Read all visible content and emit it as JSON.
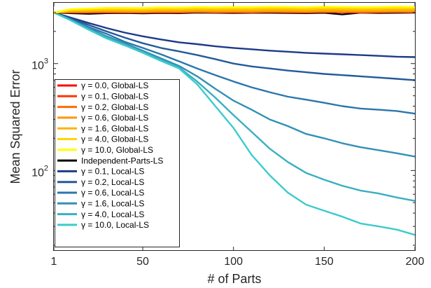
{
  "chart_data": {
    "type": "line",
    "xlabel": "# of Parts",
    "ylabel": "Mean Squared Error",
    "xlim": [
      1,
      200
    ],
    "ylim": [
      18,
      3700
    ],
    "yscale": "log",
    "grid": false,
    "legend_location": "left (middle-lower)",
    "x_ticks": [
      {
        "value": 1,
        "label": "1"
      },
      {
        "value": 50,
        "label": "50"
      },
      {
        "value": 100,
        "label": "100"
      },
      {
        "value": 150,
        "label": "150"
      },
      {
        "value": 200,
        "label": "200"
      }
    ],
    "y_ticks": [
      {
        "value": 100,
        "label": "10",
        "exp": "2"
      },
      {
        "value": 1000,
        "label": "10",
        "exp": "3"
      }
    ],
    "x": [
      1,
      10,
      20,
      30,
      40,
      50,
      60,
      70,
      80,
      90,
      100,
      110,
      120,
      130,
      140,
      150,
      160,
      170,
      180,
      190,
      200
    ],
    "series": [
      {
        "name": "γ = 0.0, Global-LS",
        "color": "#ff0000",
        "values": [
          3000,
          3010,
          3000,
          3020,
          3010,
          3000,
          3020,
          3010,
          3030,
          3010,
          3020,
          3010,
          3030,
          3020,
          3010,
          3030,
          3020,
          3010,
          3020,
          3030,
          3020
        ]
      },
      {
        "name": "γ = 0.1, Global-LS",
        "color": "#ff3500",
        "values": [
          3000,
          3020,
          3010,
          3030,
          3020,
          3010,
          3030,
          3020,
          3040,
          3020,
          3030,
          3020,
          3040,
          3030,
          3020,
          3040,
          3030,
          3020,
          3030,
          3040,
          3030
        ]
      },
      {
        "name": "γ = 0.2, Global-LS",
        "color": "#ff6a00",
        "values": [
          3000,
          3030,
          3020,
          3040,
          3030,
          3020,
          3040,
          3030,
          3050,
          3030,
          3040,
          3030,
          3050,
          3040,
          3030,
          3050,
          3040,
          3030,
          3040,
          3050,
          3040
        ]
      },
      {
        "name": "γ = 0.6, Global-LS",
        "color": "#ff9500",
        "values": [
          3000,
          3050,
          3060,
          3080,
          3070,
          3060,
          3090,
          3080,
          3100,
          3080,
          3090,
          3080,
          3100,
          3090,
          3080,
          3100,
          3090,
          3080,
          3090,
          3100,
          3090
        ]
      },
      {
        "name": "γ = 1.6, Global-LS",
        "color": "#ffb300",
        "values": [
          3000,
          3100,
          3110,
          3140,
          3130,
          3120,
          3160,
          3140,
          3170,
          3150,
          3160,
          3150,
          3180,
          3170,
          3150,
          3180,
          3170,
          3150,
          3160,
          3180,
          3170
        ]
      },
      {
        "name": "γ = 4.0, Global-LS",
        "color": "#ffd400",
        "values": [
          3000,
          3160,
          3190,
          3230,
          3220,
          3210,
          3260,
          3240,
          3280,
          3250,
          3270,
          3260,
          3290,
          3280,
          3260,
          3300,
          3280,
          3260,
          3270,
          3300,
          3280
        ]
      },
      {
        "name": "γ = 10.0, Global-LS",
        "color": "#ffff00",
        "values": [
          3000,
          3220,
          3270,
          3320,
          3320,
          3310,
          3360,
          3340,
          3380,
          3360,
          3380,
          3370,
          3400,
          3390,
          3370,
          3410,
          3390,
          3370,
          3380,
          3410,
          3390
        ]
      },
      {
        "name": "Independent-Parts-LS",
        "color": "#000000",
        "values": [
          3000,
          2960,
          2920,
          2960,
          2970,
          2950,
          2970,
          2960,
          2990,
          2980,
          2970,
          2980,
          2980,
          2970,
          2960,
          2980,
          2880,
          2990,
          2970,
          2980,
          2990
        ]
      },
      {
        "name": "γ = 0.1, Local-LS",
        "color": "#1e3a8a",
        "values": [
          3000,
          2700,
          2400,
          2150,
          1950,
          1800,
          1680,
          1580,
          1520,
          1450,
          1400,
          1360,
          1320,
          1290,
          1260,
          1240,
          1220,
          1200,
          1180,
          1160,
          1150
        ]
      },
      {
        "name": "γ = 0.2, Local-LS",
        "color": "#24599a",
        "values": [
          3000,
          2650,
          2300,
          2000,
          1750,
          1550,
          1400,
          1300,
          1200,
          1100,
          1000,
          940,
          900,
          860,
          830,
          800,
          780,
          760,
          740,
          720,
          700
        ]
      },
      {
        "name": "γ = 0.6, Local-LS",
        "color": "#2b76ac",
        "values": [
          3000,
          2600,
          2200,
          1900,
          1600,
          1400,
          1220,
          1050,
          900,
          780,
          680,
          600,
          540,
          490,
          460,
          430,
          400,
          380,
          370,
          360,
          340
        ]
      },
      {
        "name": "γ = 1.6, Local-LS",
        "color": "#3290b6",
        "values": [
          3000,
          2580,
          2150,
          1800,
          1550,
          1320,
          1120,
          950,
          760,
          580,
          450,
          370,
          300,
          260,
          220,
          200,
          180,
          165,
          155,
          145,
          135
        ]
      },
      {
        "name": "γ = 4.0, Local-LS",
        "color": "#3aaec3",
        "values": [
          3000,
          2560,
          2100,
          1750,
          1500,
          1280,
          1080,
          920,
          680,
          480,
          330,
          230,
          160,
          120,
          95,
          82,
          72,
          65,
          61,
          56,
          52
        ]
      },
      {
        "name": "γ = 10.0, Local-LS",
        "color": "#3ccbcc",
        "values": [
          3000,
          2550,
          2080,
          1720,
          1480,
          1260,
          1060,
          900,
          640,
          400,
          250,
          140,
          90,
          62,
          48,
          42,
          37,
          32,
          30,
          28,
          25
        ]
      }
    ]
  }
}
